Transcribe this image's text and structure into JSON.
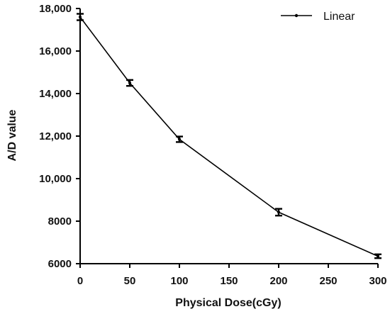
{
  "chart_data": {
    "type": "line",
    "title": "",
    "xlabel": "Physical Dose(cGy)",
    "ylabel": "A/D value",
    "x": [
      0,
      50,
      100,
      200,
      300
    ],
    "series": [
      {
        "name": "Linear",
        "values": [
          17600,
          14500,
          11850,
          8420,
          6350
        ],
        "error": [
          150,
          140,
          130,
          160,
          90
        ],
        "color": "#000000"
      }
    ],
    "xlim": [
      0,
      300
    ],
    "ylim": [
      6000,
      18000
    ],
    "xticks": [
      0,
      50,
      100,
      150,
      200,
      250,
      300
    ],
    "yticks": [
      6000,
      8000,
      10000,
      12000,
      14000,
      16000,
      18000
    ],
    "xtick_labels": [
      "0",
      "50",
      "100",
      "150",
      "200",
      "250",
      "300"
    ],
    "ytick_labels": [
      "6000",
      "8000",
      "10,000",
      "12,000",
      "14,000",
      "16,000",
      "18,000"
    ],
    "grid": false,
    "legend_position": "top-right"
  }
}
